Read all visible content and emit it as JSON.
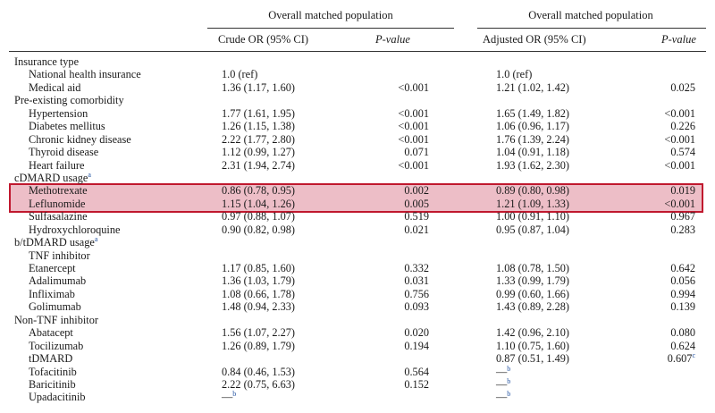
{
  "header": {
    "group_left": "Overall matched population",
    "group_right": "Overall matched population",
    "col_crude": "Crude OR (95% CI)",
    "col_p1": "P-value",
    "col_adj": "Adjusted OR (95% CI)",
    "col_p2": "P-value"
  },
  "rows": [
    {
      "label": "Insurance type",
      "sup": "",
      "indent": false,
      "crude": "",
      "crude_sup": "",
      "p1": "",
      "adj": "",
      "adj_sup": "",
      "p2": "",
      "p2_sup": ""
    },
    {
      "label": "National health insurance",
      "sup": "",
      "indent": true,
      "crude": "1.0 (ref)",
      "crude_sup": "",
      "p1": "",
      "adj": "1.0 (ref)",
      "adj_sup": "",
      "p2": "",
      "p2_sup": ""
    },
    {
      "label": "Medical aid",
      "sup": "",
      "indent": true,
      "crude": "1.36 (1.17, 1.60)",
      "crude_sup": "",
      "p1": "<0.001",
      "adj": "1.21 (1.02, 1.42)",
      "adj_sup": "",
      "p2": "0.025",
      "p2_sup": ""
    },
    {
      "label": "Pre-existing comorbidity",
      "sup": "",
      "indent": false,
      "crude": "",
      "crude_sup": "",
      "p1": "",
      "adj": "",
      "adj_sup": "",
      "p2": "",
      "p2_sup": ""
    },
    {
      "label": "Hypertension",
      "sup": "",
      "indent": true,
      "crude": "1.77 (1.61, 1.95)",
      "crude_sup": "",
      "p1": "<0.001",
      "adj": "1.65 (1.49, 1.82)",
      "adj_sup": "",
      "p2": "<0.001",
      "p2_sup": ""
    },
    {
      "label": "Diabetes mellitus",
      "sup": "",
      "indent": true,
      "crude": "1.26 (1.15, 1.38)",
      "crude_sup": "",
      "p1": "<0.001",
      "adj": "1.06 (0.96, 1.17)",
      "adj_sup": "",
      "p2": "0.226",
      "p2_sup": ""
    },
    {
      "label": "Chronic kidney disease",
      "sup": "",
      "indent": true,
      "crude": "2.22 (1.77, 2.80)",
      "crude_sup": "",
      "p1": "<0.001",
      "adj": "1.76 (1.39, 2.24)",
      "adj_sup": "",
      "p2": "<0.001",
      "p2_sup": ""
    },
    {
      "label": "Thyroid disease",
      "sup": "",
      "indent": true,
      "crude": "1.12 (0.99, 1.27)",
      "crude_sup": "",
      "p1": "0.071",
      "adj": "1.04 (0.91, 1.18)",
      "adj_sup": "",
      "p2": "0.574",
      "p2_sup": ""
    },
    {
      "label": "Heart failure",
      "sup": "",
      "indent": true,
      "crude": "2.31 (1.94, 2.74)",
      "crude_sup": "",
      "p1": "<0.001",
      "adj": "1.93 (1.62, 2.30)",
      "adj_sup": "",
      "p2": "<0.001",
      "p2_sup": ""
    },
    {
      "label": "cDMARD usage",
      "sup": "a",
      "indent": false,
      "crude": "",
      "crude_sup": "",
      "p1": "",
      "adj": "",
      "adj_sup": "",
      "p2": "",
      "p2_sup": ""
    },
    {
      "label": "Methotrexate",
      "sup": "",
      "indent": true,
      "crude": "0.86 (0.78, 0.95)",
      "crude_sup": "",
      "p1": "0.002",
      "adj": "0.89 (0.80, 0.98)",
      "adj_sup": "",
      "p2": "0.019",
      "p2_sup": ""
    },
    {
      "label": "Leflunomide",
      "sup": "",
      "indent": true,
      "crude": "1.15 (1.04, 1.26)",
      "crude_sup": "",
      "p1": "0.005",
      "adj": "1.21 (1.09, 1.33)",
      "adj_sup": "",
      "p2": "<0.001",
      "p2_sup": ""
    },
    {
      "label": "Sulfasalazine",
      "sup": "",
      "indent": true,
      "crude": "0.97 (0.88, 1.07)",
      "crude_sup": "",
      "p1": "0.519",
      "adj": "1.00 (0.91, 1.10)",
      "adj_sup": "",
      "p2": "0.967",
      "p2_sup": ""
    },
    {
      "label": "Hydroxychloroquine",
      "sup": "",
      "indent": true,
      "crude": "0.90 (0.82, 0.98)",
      "crude_sup": "",
      "p1": "0.021",
      "adj": "0.95 (0.87, 1.04)",
      "adj_sup": "",
      "p2": "0.283",
      "p2_sup": ""
    },
    {
      "label": "b/tDMARD usage",
      "sup": "a",
      "indent": false,
      "crude": "",
      "crude_sup": "",
      "p1": "",
      "adj": "",
      "adj_sup": "",
      "p2": "",
      "p2_sup": ""
    },
    {
      "label": "TNF inhibitor",
      "sup": "",
      "indent": true,
      "crude": "",
      "crude_sup": "",
      "p1": "",
      "adj": "",
      "adj_sup": "",
      "p2": "",
      "p2_sup": ""
    },
    {
      "label": "Etanercept",
      "sup": "",
      "indent": true,
      "crude": "1.17 (0.85, 1.60)",
      "crude_sup": "",
      "p1": "0.332",
      "adj": "1.08 (0.78, 1.50)",
      "adj_sup": "",
      "p2": "0.642",
      "p2_sup": ""
    },
    {
      "label": "Adalimumab",
      "sup": "",
      "indent": true,
      "crude": "1.36 (1.03, 1.79)",
      "crude_sup": "",
      "p1": "0.031",
      "adj": "1.33 (0.99, 1.79)",
      "adj_sup": "",
      "p2": "0.056",
      "p2_sup": ""
    },
    {
      "label": "Infliximab",
      "sup": "",
      "indent": true,
      "crude": "1.08 (0.66, 1.78)",
      "crude_sup": "",
      "p1": "0.756",
      "adj": "0.99 (0.60, 1.66)",
      "adj_sup": "",
      "p2": "0.994",
      "p2_sup": ""
    },
    {
      "label": "Golimumab",
      "sup": "",
      "indent": true,
      "crude": "1.48 (0.94, 2.33)",
      "crude_sup": "",
      "p1": "0.093",
      "adj": "1.43 (0.89, 2.28)",
      "adj_sup": "",
      "p2": "0.139",
      "p2_sup": ""
    },
    {
      "label": "Non-TNF inhibitor",
      "sup": "",
      "indent": false,
      "crude": "",
      "crude_sup": "",
      "p1": "",
      "adj": "",
      "adj_sup": "",
      "p2": "",
      "p2_sup": ""
    },
    {
      "label": "Abatacept",
      "sup": "",
      "indent": true,
      "crude": "1.56 (1.07, 2.27)",
      "crude_sup": "",
      "p1": "0.020",
      "adj": "1.42 (0.96, 2.10)",
      "adj_sup": "",
      "p2": "0.080",
      "p2_sup": ""
    },
    {
      "label": "Tocilizumab",
      "sup": "",
      "indent": true,
      "crude": "1.26 (0.89, 1.79)",
      "crude_sup": "",
      "p1": "0.194",
      "adj": "1.10 (0.75, 1.60)",
      "adj_sup": "",
      "p2": "0.624",
      "p2_sup": ""
    },
    {
      "label": "tDMARD",
      "sup": "",
      "indent": true,
      "crude": "",
      "crude_sup": "",
      "p1": "",
      "adj": "0.87 (0.51, 1.49)",
      "adj_sup": "",
      "p2": "0.607",
      "p2_sup": "c"
    },
    {
      "label": "Tofacitinib",
      "sup": "",
      "indent": true,
      "crude": "0.84 (0.46, 1.53)",
      "crude_sup": "",
      "p1": "0.564",
      "adj": "—",
      "adj_sup": "b",
      "p2": "",
      "p2_sup": ""
    },
    {
      "label": "Baricitinib",
      "sup": "",
      "indent": true,
      "crude": "2.22 (0.75, 6.63)",
      "crude_sup": "",
      "p1": "0.152",
      "adj": "—",
      "adj_sup": "b",
      "p2": "",
      "p2_sup": ""
    },
    {
      "label": "Upadacitinib",
      "sup": "",
      "indent": true,
      "crude": "—",
      "crude_sup": "b",
      "p1": "",
      "adj": "—",
      "adj_sup": "b",
      "p2": "",
      "p2_sup": ""
    }
  ],
  "highlight_color": "#c0182e"
}
